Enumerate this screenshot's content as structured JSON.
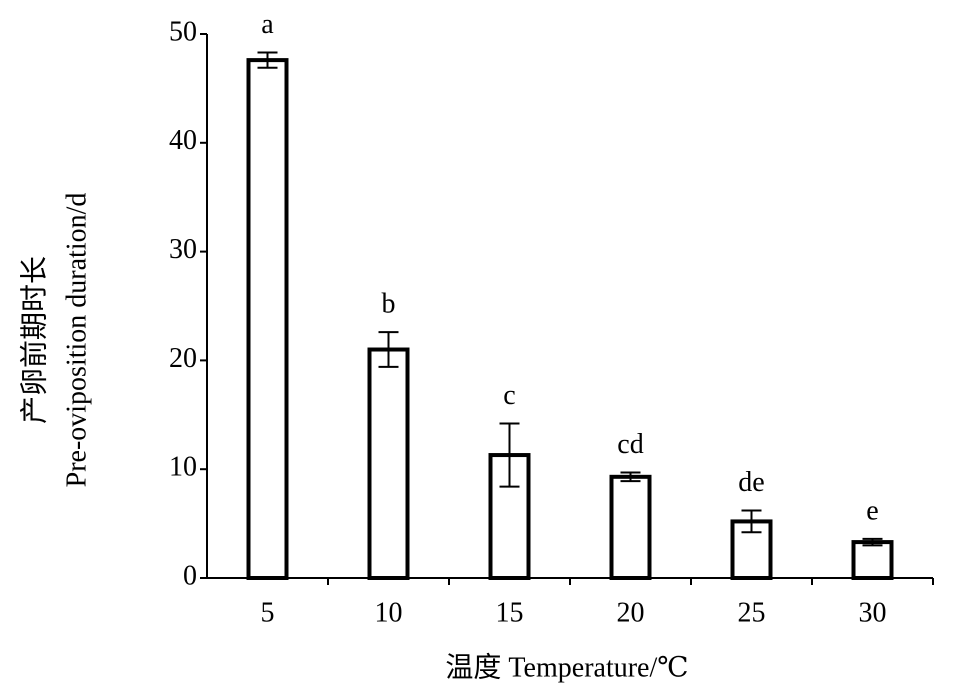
{
  "chart_data": {
    "type": "bar",
    "x_label": "温度 Temperature/℃",
    "y_label": [
      "产卵前期时长",
      "Pre-oviposition duration/d"
    ],
    "categories": [
      "5",
      "10",
      "15",
      "20",
      "25",
      "30"
    ],
    "values": [
      47.6,
      21.0,
      11.3,
      9.3,
      5.2,
      3.3
    ],
    "errors": [
      0.7,
      1.6,
      2.9,
      0.4,
      1.0,
      0.3
    ],
    "significance_letters": [
      "a",
      "b",
      "c",
      "cd",
      "de",
      "e"
    ],
    "color": "#ffffff",
    "edge_color": "#000000",
    "ylim": [
      0,
      50
    ],
    "yticks": [
      0,
      10,
      20,
      30,
      40,
      50
    ],
    "grid": false
  }
}
